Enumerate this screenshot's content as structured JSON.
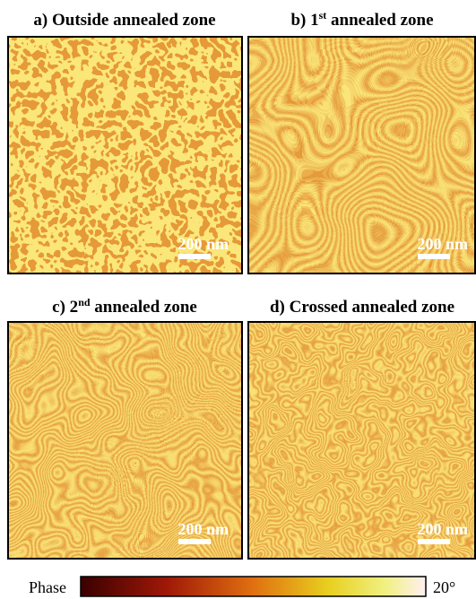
{
  "panels": [
    {
      "title": [
        "a) Outside annealed zone"
      ],
      "scale_bar": "200 nm"
    },
    {
      "title": [
        "b) 1",
        "st",
        " annealed zone"
      ],
      "scale_bar": "200 nm"
    },
    {
      "title": [
        "c) 2",
        "nd",
        " annealed zone"
      ],
      "scale_bar": "200 nm"
    },
    {
      "title": [
        "d) Crossed annealed zone"
      ],
      "scale_bar": "200 nm"
    }
  ],
  "colorbar": {
    "label": "Phase",
    "max_label": "20°"
  }
}
